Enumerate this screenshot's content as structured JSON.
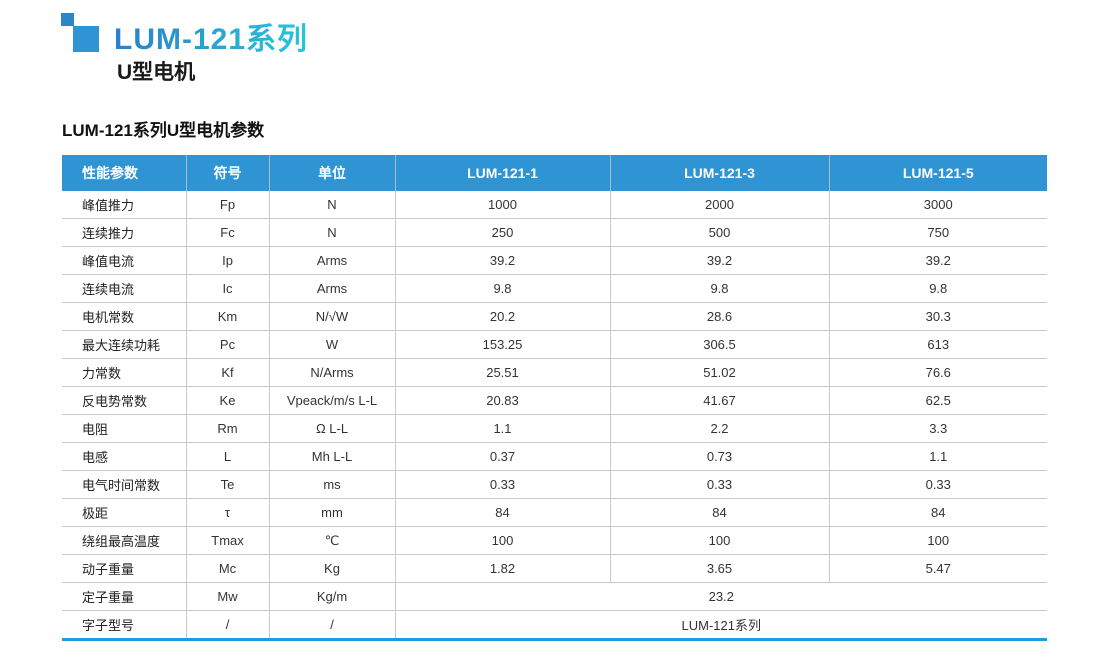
{
  "header": {
    "series_title": "LUM-121系列",
    "subtitle": "U型电机"
  },
  "colors": {
    "header_blue": "#2E94D3",
    "bottom_rule_blue": "#1E9BE2",
    "row_border_gray": "#c9c9c9",
    "header_separator": "#a9bdc9",
    "square_small": "#2B86C8",
    "square_large": "#2E94D3",
    "title_gradient_start": "#2B7FC9",
    "title_gradient_end": "#29C5DA"
  },
  "table": {
    "title": "LUM-121系列U型电机参数",
    "headers": [
      "性能参数",
      "符号",
      "单位",
      "LUM-121-1",
      "LUM-121-3",
      "LUM-121-5"
    ],
    "rows": [
      {
        "param": "峰值推力",
        "symbol": "Fp",
        "unit": "N",
        "values": [
          "1000",
          "2000",
          "3000"
        ]
      },
      {
        "param": "连续推力",
        "symbol": "Fc",
        "unit": "N",
        "values": [
          "250",
          "500",
          "750"
        ]
      },
      {
        "param": "峰值电流",
        "symbol": "Ip",
        "unit": "Arms",
        "values": [
          "39.2",
          "39.2",
          "39.2"
        ]
      },
      {
        "param": "连续电流",
        "symbol": "Ic",
        "unit": "Arms",
        "values": [
          "9.8",
          "9.8",
          "9.8"
        ]
      },
      {
        "param": "电机常数",
        "symbol": "Km",
        "unit": "N/√W",
        "values": [
          "20.2",
          "28.6",
          "30.3"
        ]
      },
      {
        "param": "最大连续功耗",
        "symbol": "Pc",
        "unit": "W",
        "values": [
          "153.25",
          "306.5",
          "613"
        ]
      },
      {
        "param": "力常数",
        "symbol": "Kf",
        "unit": "N/Arms",
        "values": [
          "25.51",
          "51.02",
          "76.6"
        ]
      },
      {
        "param": "反电势常数",
        "symbol": "Ke",
        "unit": "Vpeack/m/s L-L",
        "values": [
          "20.83",
          "41.67",
          "62.5"
        ]
      },
      {
        "param": "电阻",
        "symbol": "Rm",
        "unit": "Ω L-L",
        "values": [
          "1.1",
          "2.2",
          "3.3"
        ]
      },
      {
        "param": "电感",
        "symbol": "L",
        "unit": "Mh L-L",
        "values": [
          "0.37",
          "0.73",
          "1.1"
        ]
      },
      {
        "param": "电气时间常数",
        "symbol": "Te",
        "unit": "ms",
        "values": [
          "0.33",
          "0.33",
          "0.33"
        ]
      },
      {
        "param": "极距",
        "symbol": "τ",
        "unit": "mm",
        "values": [
          "84",
          "84",
          "84"
        ]
      },
      {
        "param": "绕组最高温度",
        "symbol": "Tmax",
        "unit": "℃",
        "values": [
          "100",
          "100",
          "100"
        ]
      },
      {
        "param": "动子重量",
        "symbol": "Mc",
        "unit": "Kg",
        "values": [
          "1.82",
          "3.65",
          "5.47"
        ]
      },
      {
        "param": "定子重量",
        "symbol": "Mw",
        "unit": "Kg/m",
        "values": [
          "23.2"
        ]
      },
      {
        "param": "字子型号",
        "symbol": "/",
        "unit": "/",
        "values": [
          "LUM-121系列"
        ]
      }
    ]
  }
}
